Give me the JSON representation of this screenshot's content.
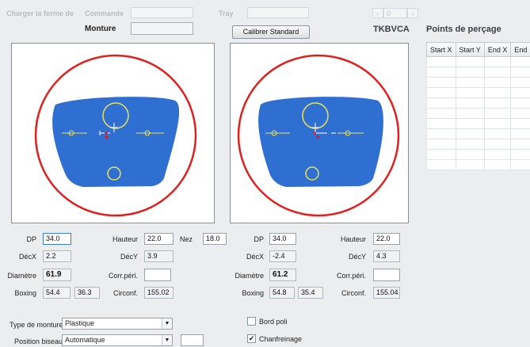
{
  "top_faded": {
    "charger_label": "Charger la forme de",
    "commande_label": "Commande",
    "tray_label": "Tray",
    "spinner_value": "0"
  },
  "monture": {
    "label": "Monture",
    "value": ""
  },
  "calibrer_button": "Calibrer Standard",
  "tracer_code": "TKBVCA",
  "points": {
    "title": "Points de perçage",
    "columns": [
      "Start X",
      "Start Y",
      "End X",
      "End"
    ],
    "row_count": 11
  },
  "left": {
    "dp_label": "DP",
    "dp_value": "34.0",
    "hauteur_label": "Hauteur",
    "hauteur_value": "22.0",
    "nez_label": "Nez",
    "nez_value": "18.0",
    "decx_label": "DécX",
    "decx_value": "2.2",
    "decy_label": "DécY",
    "decy_value": "3.9",
    "diametre_label": "Diamètre",
    "diametre_value": "61.9",
    "corr_label": "Corr.péri.",
    "corr_value": "",
    "boxing_label": "Boxing",
    "boxing_a": "54.4",
    "boxing_b": "36.3",
    "circonf_label": "Circonf.",
    "circonf_value": "155.02"
  },
  "right": {
    "dp_label": "DP",
    "dp_value": "34.0",
    "hauteur_label": "Hauteur",
    "hauteur_value": "22.0",
    "decx_label": "DécX",
    "decx_value": "-2.4",
    "decy_label": "DécY",
    "decy_value": "4.3",
    "diametre_label": "Diamètre",
    "diametre_value": "61.2",
    "corr_label": "Corr.péri.",
    "corr_value": "",
    "boxing_label": "Boxing",
    "boxing_a": "54.8",
    "boxing_b": "35.4",
    "circonf_label": "Circonf.",
    "circonf_value": "155.04"
  },
  "bottom": {
    "type_label": "Type de monture",
    "type_value": "Plastique",
    "biseau_label": "Position biseau",
    "biseau_value": "Automatique",
    "bord_poli_label": "Bord poli",
    "bord_poli_checked": false,
    "chanfreinage_label": "Chanfreinage",
    "chanfreinage_checked": true
  },
  "colors": {
    "lens_fill": "#2f6fd1",
    "circle": "#e0201e",
    "marker": "#e8e15a"
  }
}
